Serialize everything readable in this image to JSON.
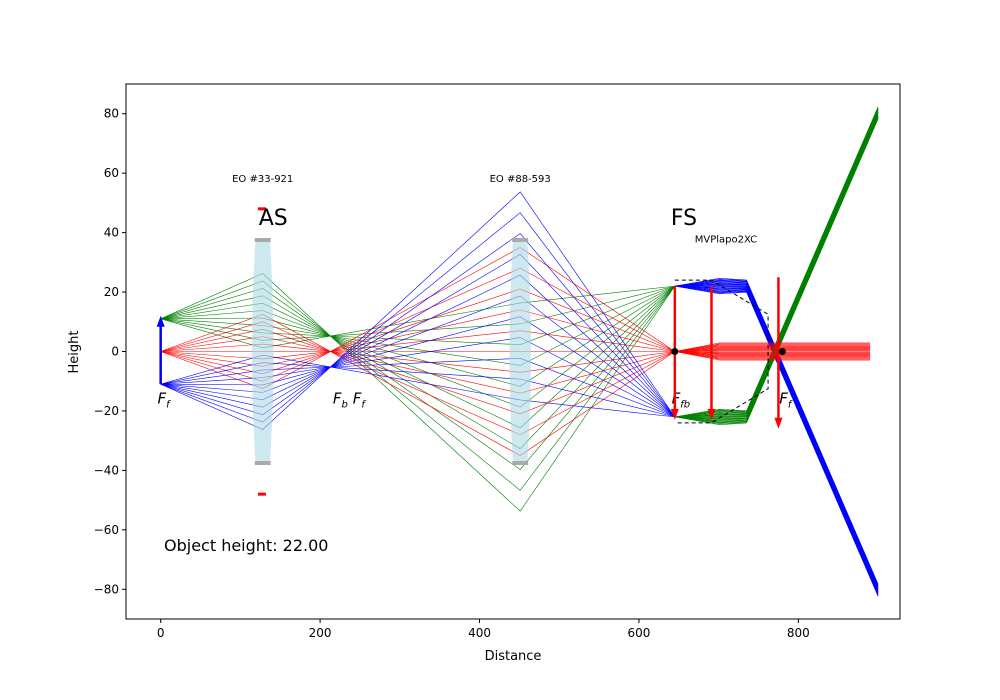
{
  "chart_data": {
    "type": "diagram",
    "xlabel": "Distance",
    "ylabel": "Height",
    "xlim": [
      -43.5,
      927.5
    ],
    "ylim": [
      -90,
      90
    ],
    "x_ticks": [
      0,
      200,
      400,
      600,
      800
    ],
    "x_tick_labels": [
      "0",
      "200",
      "400",
      "600",
      "800"
    ],
    "y_ticks": [
      -80,
      -60,
      -40,
      -20,
      0,
      20,
      40,
      60,
      80
    ],
    "y_tick_labels": [
      "−80",
      "−60",
      "−40",
      "−20",
      "0",
      "20",
      "40",
      "60",
      "80"
    ],
    "colors": {
      "red_rays": "#ff0000",
      "green_rays": "#008000",
      "blue_rays": "#0000ff",
      "lens_fill": "#add8e6",
      "aperture": "#aaaaaa"
    },
    "object_height_label": "Object height: 22.00",
    "object": {
      "x": 0,
      "y_from": -11,
      "y_to": 11
    },
    "lenses": [
      {
        "name": "EO #33-921",
        "x": 128,
        "half_height": 37.5
      },
      {
        "name": "EO #88-593",
        "x": 451,
        "half_height": 37.5
      },
      {
        "name": "MVPlapo2XC",
        "x": 762,
        "half_height": 12.5
      }
    ],
    "stop_labels": [
      {
        "text": "AS",
        "x": 128
      },
      {
        "text": "FS",
        "x": 645
      }
    ],
    "focal_labels": [
      {
        "text": "F",
        "sub": "f",
        "x": 0
      },
      {
        "text": "F",
        "sub": "b",
        "x": 220
      },
      {
        "text": "F",
        "sub": "f",
        "x": 245
      },
      {
        "text": "F",
        "sub": "fb",
        "x": 645
      },
      {
        "text": "F",
        "sub": "f",
        "x": 780
      }
    ],
    "image_arrows": [
      {
        "x": 645,
        "y_from": 22,
        "y_to": -22
      },
      {
        "x": 691,
        "y_from": 22,
        "y_to": -22
      },
      {
        "x": 775,
        "y_from": 25,
        "y_to": -25
      }
    ],
    "focal_points": [
      {
        "x": 645,
        "y": 0
      },
      {
        "x": 780,
        "y": 0
      }
    ]
  }
}
